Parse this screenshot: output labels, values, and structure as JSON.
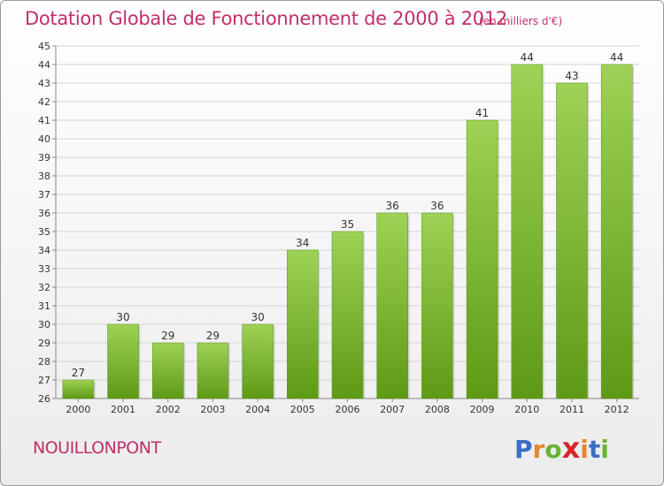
{
  "header": {
    "title": "Dotation Globale de Fonctionnement de 2000 à 2012",
    "subtitle": "(en milliers d'€)"
  },
  "footer": {
    "commune": "NOUILLONPONT",
    "logo_letters": [
      "P",
      "r",
      "o",
      "x",
      "i",
      "t",
      "i"
    ],
    "logo_colors": [
      "#3a6fc4",
      "#e8862a",
      "#66b333",
      "#d6262b",
      "#e8862a",
      "#3a6fc4",
      "#66b333"
    ]
  },
  "colors": {
    "bar_top": "#9ed256",
    "bar_bottom": "#5e9a16",
    "grid": "#d4d4d4",
    "title": "#c0306a"
  },
  "chart_data": {
    "type": "bar",
    "categories": [
      "2000",
      "2001",
      "2002",
      "2003",
      "2004",
      "2005",
      "2006",
      "2007",
      "2008",
      "2009",
      "2010",
      "2011",
      "2012"
    ],
    "values": [
      27,
      30,
      29,
      29,
      30,
      34,
      35,
      36,
      36,
      41,
      44,
      43,
      44
    ],
    "title": "Dotation Globale de Fonctionnement de 2000 à 2012",
    "subtitle": "(en milliers d'€)",
    "xlabel": "",
    "ylabel": "",
    "ylim": [
      26,
      45
    ],
    "yticks": [
      26,
      27,
      28,
      29,
      30,
      31,
      32,
      33,
      34,
      35,
      36,
      37,
      38,
      39,
      40,
      41,
      42,
      43,
      44,
      45
    ],
    "grid": true,
    "legend": "none"
  }
}
